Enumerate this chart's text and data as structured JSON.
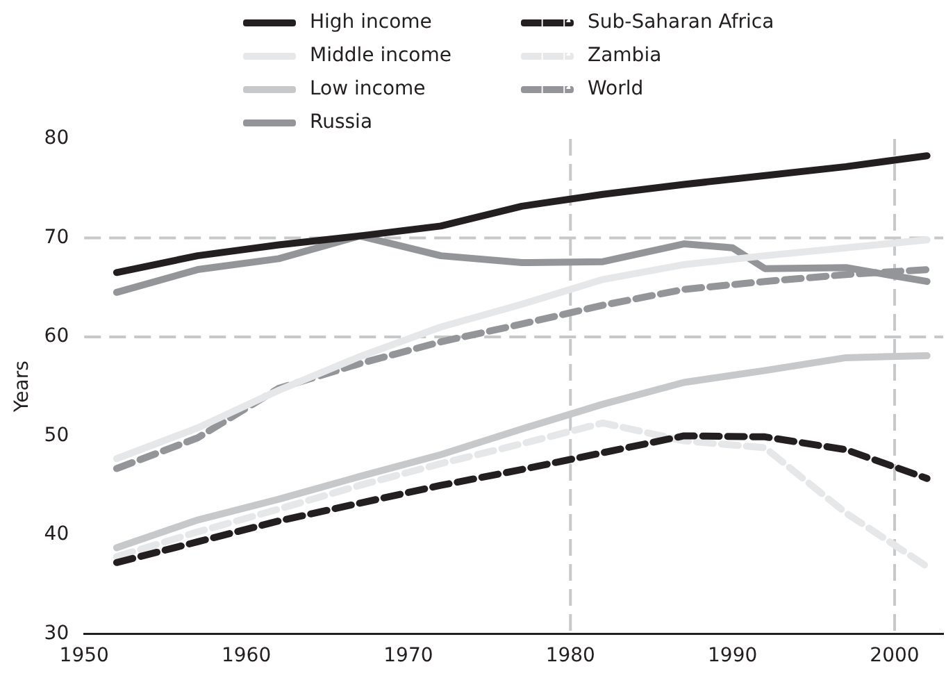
{
  "chart_data": {
    "type": "line",
    "ylabel": "Years",
    "legend": "top",
    "grid": false,
    "marker": "none",
    "xlim": [
      1950,
      2003
    ],
    "xticks": [
      1950,
      1960,
      1970,
      1980,
      1990,
      2000
    ],
    "ylim": [
      30,
      80
    ],
    "yticks": [
      30,
      40,
      50,
      60,
      70,
      80
    ],
    "ref_lines": [
      {
        "axis": "y",
        "value": 60,
        "color": "#c7c8ca",
        "line_style": "dashed"
      },
      {
        "axis": "y",
        "value": 70,
        "color": "#c7c8ca",
        "line_style": "dashed"
      },
      {
        "axis": "x",
        "value": 1980,
        "color": "#c7c8ca",
        "line_style": "dashed"
      },
      {
        "axis": "x",
        "value": 2000,
        "color": "#c7c8ca",
        "line_style": "dashed"
      }
    ],
    "series": [
      {
        "name": "High income",
        "color": "#231f20",
        "line_style": "solid",
        "x": [
          1952,
          1957,
          1962,
          1967,
          1972,
          1977,
          1982,
          1987,
          1992,
          1997,
          2002
        ],
        "values": [
          66.5,
          68.2,
          69.3,
          70.2,
          71.2,
          73.2,
          74.4,
          75.4,
          76.3,
          77.2,
          78.3
        ]
      },
      {
        "name": "Middle income",
        "color": "#e6e7e8",
        "line_style": "solid",
        "x": [
          1952,
          1957,
          1962,
          1967,
          1972,
          1977,
          1982,
          1987,
          1992,
          1997,
          2002
        ],
        "values": [
          47.7,
          50.8,
          54.6,
          58,
          61,
          63.3,
          65.8,
          67.3,
          68.2,
          69,
          69.8
        ]
      },
      {
        "name": "Low income",
        "color": "#c7c8ca",
        "line_style": "solid",
        "x": [
          1952,
          1957,
          1962,
          1967,
          1972,
          1977,
          1982,
          1987,
          1992,
          1997,
          2002
        ],
        "values": [
          38.7,
          41.5,
          43.6,
          45.9,
          48.1,
          50.7,
          53.2,
          55.4,
          56.6,
          57.9,
          58.1
        ]
      },
      {
        "name": "Russia",
        "color": "#939598",
        "line_style": "solid",
        "x": [
          1952,
          1957,
          1962,
          1967,
          1972,
          1977,
          1982,
          1987,
          1990,
          1992,
          1997,
          2002
        ],
        "values": [
          64.5,
          66.8,
          67.9,
          70.2,
          68.2,
          67.5,
          67.6,
          69.4,
          69,
          66.9,
          67,
          65.6
        ]
      },
      {
        "name": "Sub-Saharan Africa",
        "color": "#231f20",
        "line_style": "dashed",
        "x": [
          1952,
          1957,
          1962,
          1967,
          1972,
          1977,
          1982,
          1987,
          1992,
          1997,
          2002
        ],
        "values": [
          37.2,
          39.3,
          41.4,
          43.2,
          45,
          46.6,
          48.3,
          50,
          49.9,
          48.6,
          45.7
        ]
      },
      {
        "name": "Zambia",
        "color": "#e6e7e8",
        "line_style": "dashed",
        "x": [
          1952,
          1957,
          1962,
          1967,
          1972,
          1977,
          1982,
          1987,
          1992,
          1997,
          2002
        ],
        "values": [
          37.8,
          40.3,
          42.6,
          45,
          47.2,
          49.2,
          51.3,
          49.5,
          48.8,
          42.2,
          36.8
        ]
      },
      {
        "name": "World",
        "color": "#939598",
        "line_style": "dashed",
        "x": [
          1952,
          1957,
          1962,
          1967,
          1972,
          1977,
          1982,
          1987,
          1992,
          1997,
          2002
        ],
        "values": [
          46.7,
          49.8,
          54.8,
          57.3,
          59.5,
          61.3,
          63.2,
          64.8,
          65.6,
          66.3,
          66.8
        ]
      }
    ]
  }
}
